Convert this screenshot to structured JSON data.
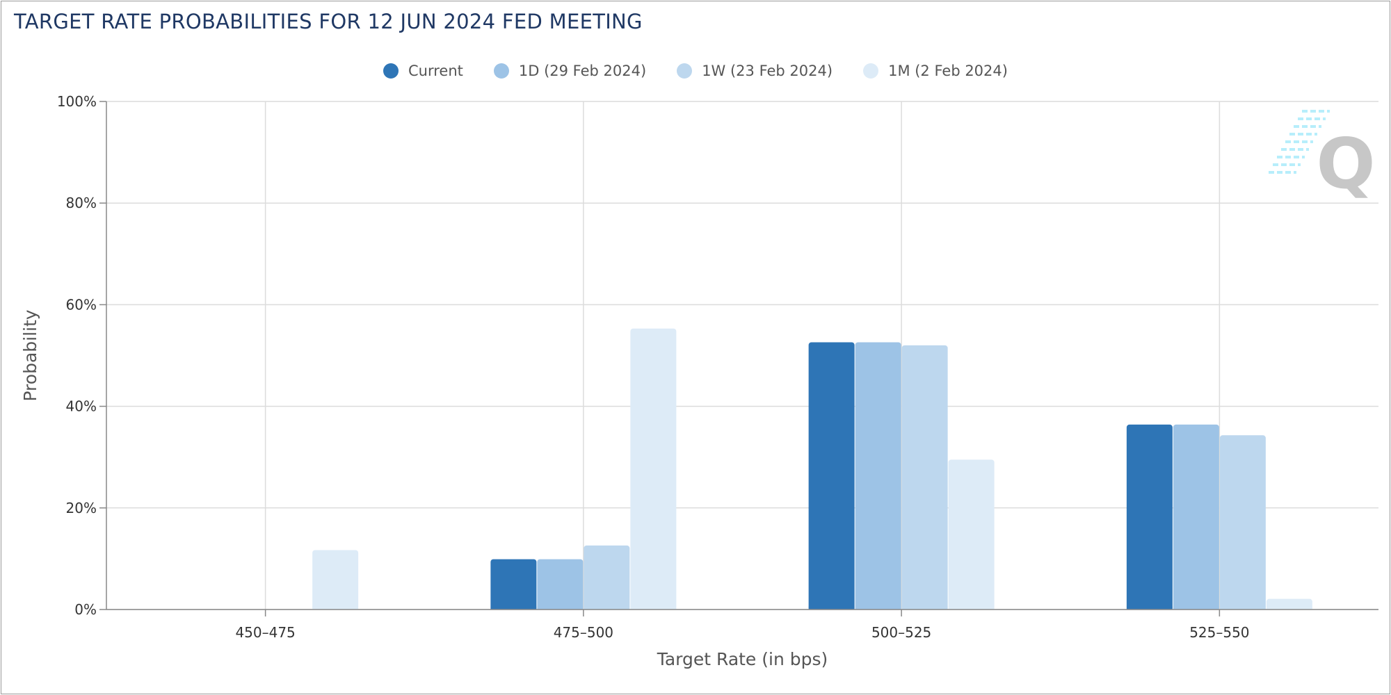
{
  "chart_data": {
    "type": "bar",
    "title": "TARGET RATE PROBABILITIES FOR 12 JUN 2024 FED MEETING",
    "xlabel": "Target Rate (in bps)",
    "ylabel": "Probability",
    "categories": [
      "450-475",
      "475-500",
      "500-525",
      "525-550"
    ],
    "ylim": [
      0,
      100
    ],
    "yticks": [
      "0%",
      "20%",
      "40%",
      "60%",
      "80%",
      "100%"
    ],
    "grid": true,
    "legend_position": "top-center",
    "series": [
      {
        "name": "Current",
        "color": "#2e75b6",
        "values": [
          0,
          9.9,
          52.6,
          36.4
        ]
      },
      {
        "name": "1D (29 Feb 2024)",
        "color": "#9dc3e6",
        "values": [
          0,
          9.9,
          52.6,
          36.4
        ]
      },
      {
        "name": "1W (23 Feb 2024)",
        "color": "#bdd7ee",
        "values": [
          0,
          12.6,
          52.0,
          34.3
        ]
      },
      {
        "name": "1M (2 Feb 2024)",
        "color": "#ddebf7",
        "values": [
          11.7,
          55.3,
          29.5,
          2.1
        ]
      }
    ]
  },
  "watermark": {
    "letter": "Q"
  }
}
